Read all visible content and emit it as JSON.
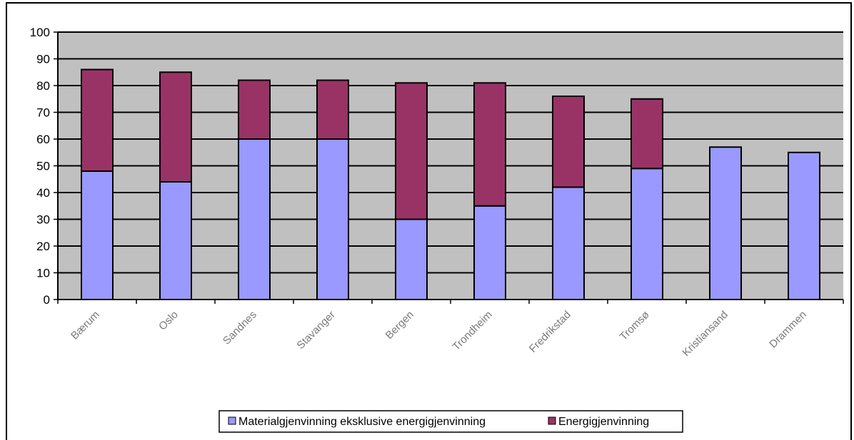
{
  "chart_data": {
    "type": "bar",
    "stacked": true,
    "categories": [
      "Bærum",
      "Oslo",
      "Sandnes",
      "Stavanger",
      "Bergen",
      "Trondheim",
      "Fredrikstad",
      "Tromsø",
      "Kristiansand",
      "Drammen"
    ],
    "series": [
      {
        "name": "Materialgjenvinning eksklusive energigjenvinning",
        "color": "#9999ff",
        "values": [
          48,
          44,
          60,
          60,
          30,
          35,
          42,
          49,
          57,
          55
        ]
      },
      {
        "name": "Energigjenvinning",
        "color": "#993366",
        "values": [
          38,
          41,
          22,
          22,
          51,
          46,
          34,
          26,
          0,
          0
        ]
      }
    ],
    "ylim": [
      0,
      100
    ],
    "yticks": [
      0,
      10,
      20,
      30,
      40,
      50,
      60,
      70,
      80,
      90,
      100
    ],
    "grid": true,
    "plot_background": "#c0c0c0",
    "legend_position": "bottom",
    "title": "",
    "xlabel": "",
    "ylabel": ""
  }
}
